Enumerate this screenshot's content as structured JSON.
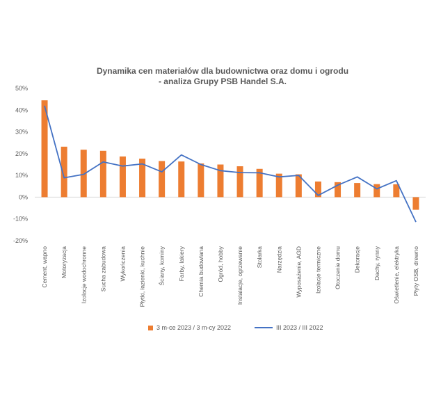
{
  "chart_data": {
    "type": "bar",
    "title_lines": [
      "Dynamika cen materiałów dla budownictwa oraz domu i ogrodu",
      "- analiza Grupy PSB Handel S.A."
    ],
    "categories": [
      "Cement, wapno",
      "Motoryzacja",
      "Izolacje wodochronne",
      "Sucha zabudowa",
      "Wykończenia",
      "Płytki, łazienki, kuchnie",
      "Ściany, kominy",
      "Farby, lakiery",
      "Chemia budowlana",
      "Ogród, hobby",
      "Instalacje, ogrzewanie",
      "Stolarka",
      "Narzędzia",
      "Wyposażenie, AGD",
      "Izolacje termiczne",
      "Otoczenie domu",
      "Dekoracje",
      "Dachy, rynny",
      "Oświetlenie, elektryka",
      "Płyty OSB, drewno"
    ],
    "series": [
      {
        "name": "3 m-ce 2023 / 3 m-cy 2022",
        "type": "bar",
        "color": "#ED7D31",
        "values": [
          44.5,
          23.2,
          21.8,
          21.3,
          18.7,
          17.7,
          16.6,
          16.4,
          15.5,
          15.0,
          14.2,
          13.0,
          10.8,
          10.5,
          7.2,
          6.9,
          6.5,
          6.0,
          5.9,
          -5.8
        ]
      },
      {
        "name": "III 2023 / III 2022",
        "type": "line",
        "color": "#4472C4",
        "values": [
          42.0,
          8.9,
          10.5,
          16.2,
          14.3,
          15.3,
          11.6,
          19.4,
          15.0,
          12.2,
          11.3,
          11.2,
          9.3,
          10.0,
          0.8,
          5.5,
          9.3,
          3.8,
          7.6,
          -11.4
        ]
      }
    ],
    "ylim": [
      -20,
      50
    ],
    "yticks": [
      -20,
      -10,
      0,
      10,
      20,
      30,
      40,
      50
    ],
    "ytick_labels": [
      "-20%",
      "-10%",
      "0%",
      "10%",
      "20%",
      "30%",
      "40%",
      "50%"
    ],
    "grid": false,
    "legend_position": "bottom"
  }
}
